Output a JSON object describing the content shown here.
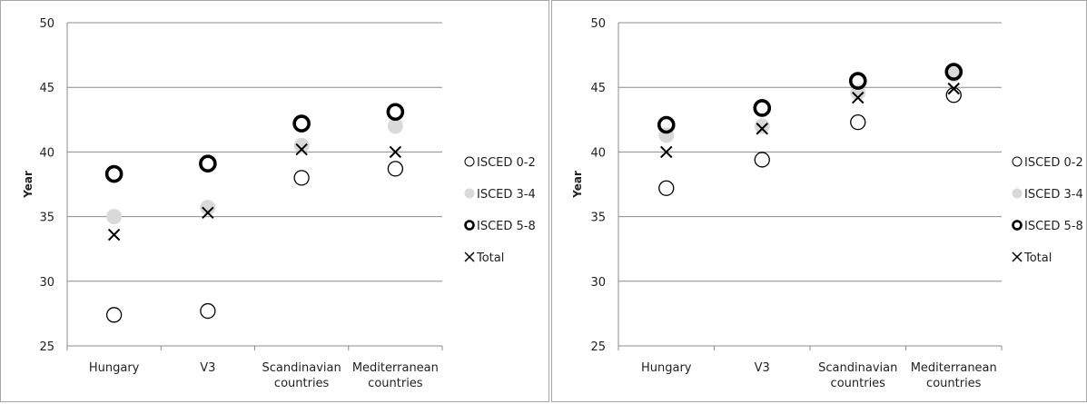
{
  "chart_data": [
    {
      "type": "scatter",
      "ylabel": "Year",
      "ylim": [
        25,
        50
      ],
      "yticks": [
        25,
        30,
        35,
        40,
        45,
        50
      ],
      "categories": [
        "Hungary",
        "V3",
        "Scandinavian countries",
        "Mediterranean countries"
      ],
      "category_lines": [
        [
          "Hungary"
        ],
        [
          "V3"
        ],
        [
          "Scandinavian",
          "countries"
        ],
        [
          "Mediterranean",
          "countries"
        ]
      ],
      "grid": true,
      "legend": "right",
      "series": [
        {
          "name": "ISCED 0-2",
          "marker": "open-circle",
          "values": [
            27.4,
            27.7,
            38.0,
            38.7
          ]
        },
        {
          "name": "ISCED 3-4",
          "marker": "filled-circle",
          "color": "#d9d9d9",
          "values": [
            35.0,
            35.7,
            40.5,
            42.0
          ]
        },
        {
          "name": "ISCED 5-8",
          "marker": "bold-circle",
          "values": [
            38.3,
            39.1,
            42.2,
            43.1
          ]
        },
        {
          "name": "Total",
          "marker": "x",
          "values": [
            33.6,
            35.3,
            40.2,
            40.0
          ]
        }
      ]
    },
    {
      "type": "scatter",
      "ylabel": "Year",
      "ylim": [
        25,
        50
      ],
      "yticks": [
        25,
        30,
        35,
        40,
        45,
        50
      ],
      "categories": [
        "Hungary",
        "V3",
        "Scandinavian countries",
        "Mediterranean countries"
      ],
      "category_lines": [
        [
          "Hungary"
        ],
        [
          "V3"
        ],
        [
          "Scandinavian",
          "countries"
        ],
        [
          "Mediterranean",
          "countries"
        ]
      ],
      "grid": true,
      "legend": "right",
      "series": [
        {
          "name": "ISCED 0-2",
          "marker": "open-circle",
          "values": [
            37.2,
            39.4,
            42.3,
            44.4
          ]
        },
        {
          "name": "ISCED 3-4",
          "marker": "filled-circle",
          "color": "#d9d9d9",
          "values": [
            41.3,
            42.0,
            44.6,
            46.0
          ]
        },
        {
          "name": "ISCED 5-8",
          "marker": "bold-circle",
          "values": [
            42.1,
            43.4,
            45.5,
            46.2
          ]
        },
        {
          "name": "Total",
          "marker": "x",
          "values": [
            40.0,
            41.8,
            44.2,
            44.9
          ]
        }
      ]
    }
  ]
}
